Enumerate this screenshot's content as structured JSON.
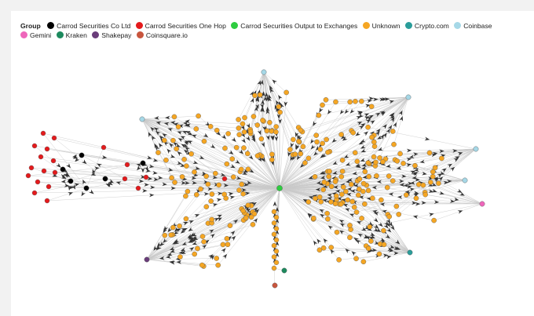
{
  "legend": {
    "title": "Group",
    "items": [
      {
        "label": "Carrod Securities Co Ltd",
        "color": "#000000"
      },
      {
        "label": "Carrod Securities One Hop",
        "color": "#e41a1c"
      },
      {
        "label": "Carrod Securities Output to Exchanges",
        "color": "#2ecc40"
      },
      {
        "label": "Unknown",
        "color": "#f5a623"
      },
      {
        "label": "Crypto.com",
        "color": "#2a9d9a"
      },
      {
        "label": "Coinbase",
        "color": "#a6d8e7"
      },
      {
        "label": "Gemini",
        "color": "#ee66bb"
      },
      {
        "label": "Kraken",
        "color": "#1d8a5e"
      },
      {
        "label": "Shakepay",
        "color": "#6a3d7a"
      },
      {
        "label": "Coinsquare.io",
        "color": "#c8553d"
      }
    ]
  },
  "colors": {
    "edge": "#c9c9c9",
    "arrow": "#333333",
    "node_stroke": "#555555"
  }
}
